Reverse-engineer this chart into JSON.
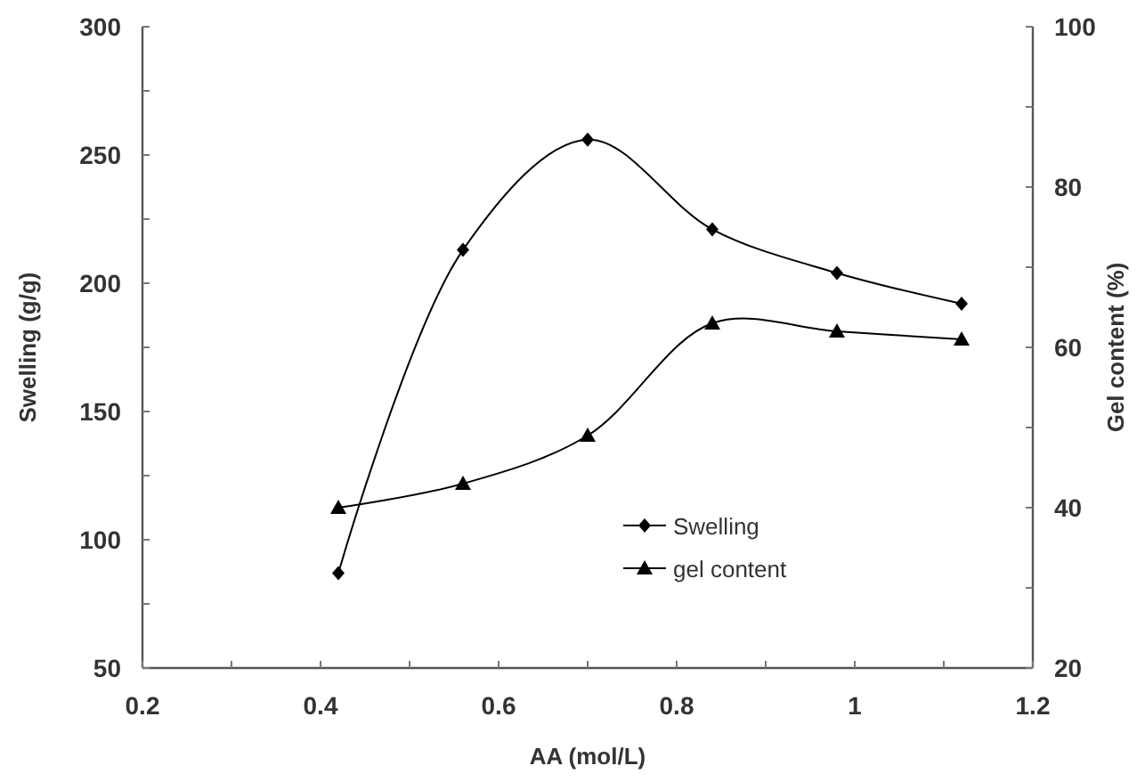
{
  "chart_data": {
    "type": "line",
    "xlabel": "AA (mol/L)",
    "ylabel": "Swelling (g/g)",
    "y2label": "Gel content (%)",
    "x": [
      0.42,
      0.56,
      0.7,
      0.84,
      0.98,
      1.12
    ],
    "series": [
      {
        "name": "Swelling",
        "color": "#000000",
        "values": [
          87,
          213,
          256,
          221,
          204,
          192
        ],
        "marker": "diamond"
      },
      {
        "name": "gel content",
        "color": "#000000",
        "values": [
          40,
          43,
          49,
          63,
          62,
          61
        ],
        "marker": "triangle",
        "axis": "y2"
      }
    ],
    "xlim": [
      0.2,
      1.2
    ],
    "xticks": [
      0.2,
      {
        "value": 0.3,
        "label": null
      },
      0.4,
      {
        "value": 0.5,
        "label": null
      },
      0.6,
      {
        "value": 0.7,
        "label": null
      },
      0.8,
      {
        "value": 0.9,
        "label": null
      },
      1,
      {
        "value": 1.1,
        "label": null
      },
      1.2
    ],
    "ylim": [
      50,
      300
    ],
    "yticks": [
      50,
      {
        "value": 75,
        "label": null
      },
      100,
      {
        "value": 125,
        "label": null
      },
      150,
      {
        "value": 175,
        "label": null
      },
      200,
      {
        "value": 225,
        "label": null
      },
      250,
      {
        "value": 275,
        "label": null
      },
      300
    ],
    "y2lim": [
      20,
      100
    ],
    "y2ticks": [
      20,
      {
        "value": 30,
        "label": null
      },
      40,
      {
        "value": 50,
        "label": null
      },
      60,
      {
        "value": 70,
        "label": null
      },
      80,
      {
        "value": 90,
        "label": null
      },
      100
    ],
    "legend": "bottom right",
    "grid": false,
    "line_style": "solid"
  }
}
